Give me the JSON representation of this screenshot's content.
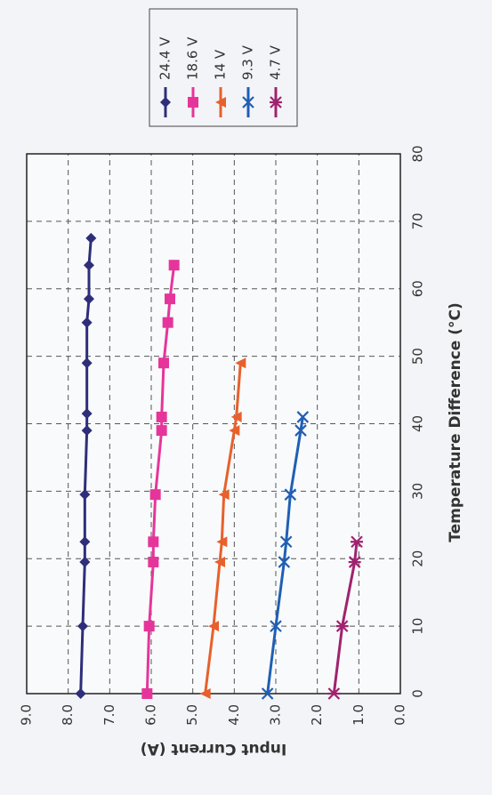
{
  "chart_data": {
    "type": "line",
    "x_label": "Temperature Difference (°C)",
    "y_label": "Input Current (A)",
    "xlim": [
      0,
      80
    ],
    "xticks": [
      0,
      10,
      20,
      30,
      40,
      50,
      60,
      70,
      80
    ],
    "ylim": [
      0,
      9
    ],
    "yticks": [
      {
        "value": 0,
        "label": "0.0"
      },
      {
        "value": 1,
        "label": "1.0"
      },
      {
        "value": 2,
        "label": "2.0"
      },
      {
        "value": 3,
        "label": "3.0"
      },
      {
        "value": 4,
        "label": "4.0"
      },
      {
        "value": 5,
        "label": "5.0"
      },
      {
        "value": 6,
        "label": "6.0"
      },
      {
        "value": 7,
        "label": "7.0"
      },
      {
        "value": 8,
        "label": "8.0"
      },
      {
        "value": 9,
        "label": "9.0"
      }
    ],
    "grid": true,
    "legend": "top-right",
    "series": [
      {
        "name": "24.4 V",
        "color": "#2e2e7a",
        "marker": "diamond",
        "x": [
          0,
          10,
          19.5,
          22.5,
          29.5,
          39,
          41.5,
          49,
          55,
          58.5,
          63.5,
          67.5
        ],
        "values": [
          7.7,
          7.65,
          7.6,
          7.6,
          7.6,
          7.55,
          7.55,
          7.55,
          7.55,
          7.5,
          7.5,
          7.45
        ]
      },
      {
        "name": "18.6 V",
        "color": "#e6359a",
        "marker": "square",
        "x": [
          0,
          10,
          19.5,
          22.5,
          29.5,
          39,
          41,
          49,
          55,
          58.5,
          63.5
        ],
        "values": [
          6.1,
          6.05,
          5.95,
          5.95,
          5.9,
          5.75,
          5.75,
          5.7,
          5.6,
          5.55,
          5.45
        ]
      },
      {
        "name": "14 V",
        "color": "#e8602c",
        "marker": "triangle",
        "x": [
          0,
          10,
          19.5,
          22.5,
          29.5,
          39,
          41,
          49
        ],
        "values": [
          4.7,
          4.5,
          4.35,
          4.3,
          4.25,
          4.0,
          3.95,
          3.85
        ]
      },
      {
        "name": "9.3 V",
        "color": "#1f5fb4",
        "marker": "x",
        "x": [
          0,
          10,
          19.5,
          22.5,
          29.5,
          39,
          41
        ],
        "values": [
          3.2,
          3.0,
          2.8,
          2.75,
          2.65,
          2.4,
          2.35
        ]
      },
      {
        "name": "4.7 V",
        "color": "#a0226f",
        "marker": "star",
        "x": [
          0,
          10,
          19.5,
          22.5
        ],
        "values": [
          1.6,
          1.4,
          1.1,
          1.05
        ]
      }
    ]
  }
}
